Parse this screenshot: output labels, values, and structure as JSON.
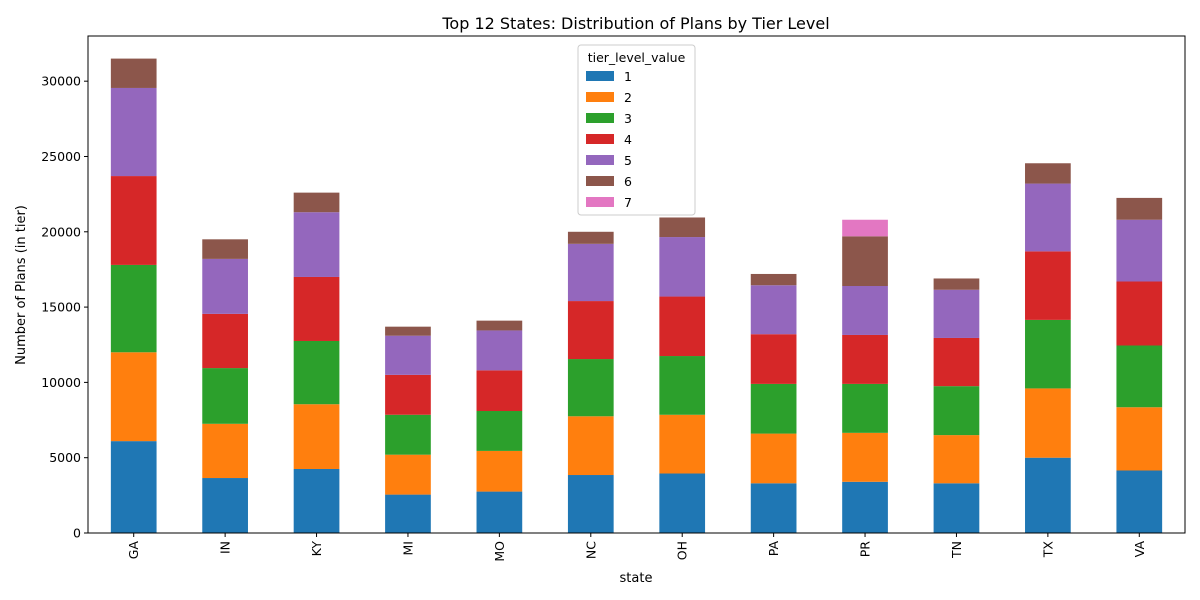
{
  "chart_data": {
    "type": "bar",
    "stacked": true,
    "title": "Top 12 States: Distribution of Plans by Tier Level",
    "xlabel": "state",
    "ylabel": "Number of Plans (in tier)",
    "ylim": [
      0,
      33000
    ],
    "yticks": [
      0,
      5000,
      10000,
      15000,
      20000,
      25000,
      30000
    ],
    "ytick_labels": [
      "0",
      "5000",
      "10000",
      "15000",
      "20000",
      "25000",
      "30000"
    ],
    "grid": false,
    "legend": {
      "title": "tier_level_value",
      "position": "top-center"
    },
    "categories": [
      "GA",
      "IN",
      "KY",
      "MI",
      "MO",
      "NC",
      "OH",
      "PA",
      "PR",
      "TN",
      "TX",
      "VA"
    ],
    "series": [
      {
        "name": "1",
        "color": "#1f77b4",
        "values": [
          6100,
          3650,
          4250,
          2550,
          2750,
          3850,
          3950,
          3300,
          3400,
          3300,
          5000,
          4150
        ]
      },
      {
        "name": "2",
        "color": "#ff7f0e",
        "values": [
          5900,
          3600,
          4300,
          2650,
          2700,
          3900,
          3900,
          3300,
          3250,
          3200,
          4600,
          4200
        ]
      },
      {
        "name": "3",
        "color": "#2ca02c",
        "values": [
          5800,
          3700,
          4200,
          2650,
          2650,
          3800,
          3900,
          3300,
          3250,
          3250,
          4550,
          4100
        ]
      },
      {
        "name": "4",
        "color": "#d62728",
        "values": [
          5900,
          3600,
          4250,
          2650,
          2700,
          3850,
          3950,
          3300,
          3250,
          3200,
          4550,
          4250
        ]
      },
      {
        "name": "5",
        "color": "#9467bd",
        "values": [
          5850,
          3650,
          4300,
          2600,
          2650,
          3800,
          3950,
          3250,
          3250,
          3200,
          4500,
          4100
        ]
      },
      {
        "name": "6",
        "color": "#8c564b",
        "values": [
          1950,
          1300,
          1300,
          600,
          650,
          800,
          1300,
          750,
          3300,
          750,
          1350,
          1450
        ]
      },
      {
        "name": "7",
        "color": "#e377c2",
        "values": [
          0,
          0,
          0,
          0,
          0,
          0,
          0,
          0,
          1100,
          0,
          0,
          0
        ]
      }
    ]
  }
}
